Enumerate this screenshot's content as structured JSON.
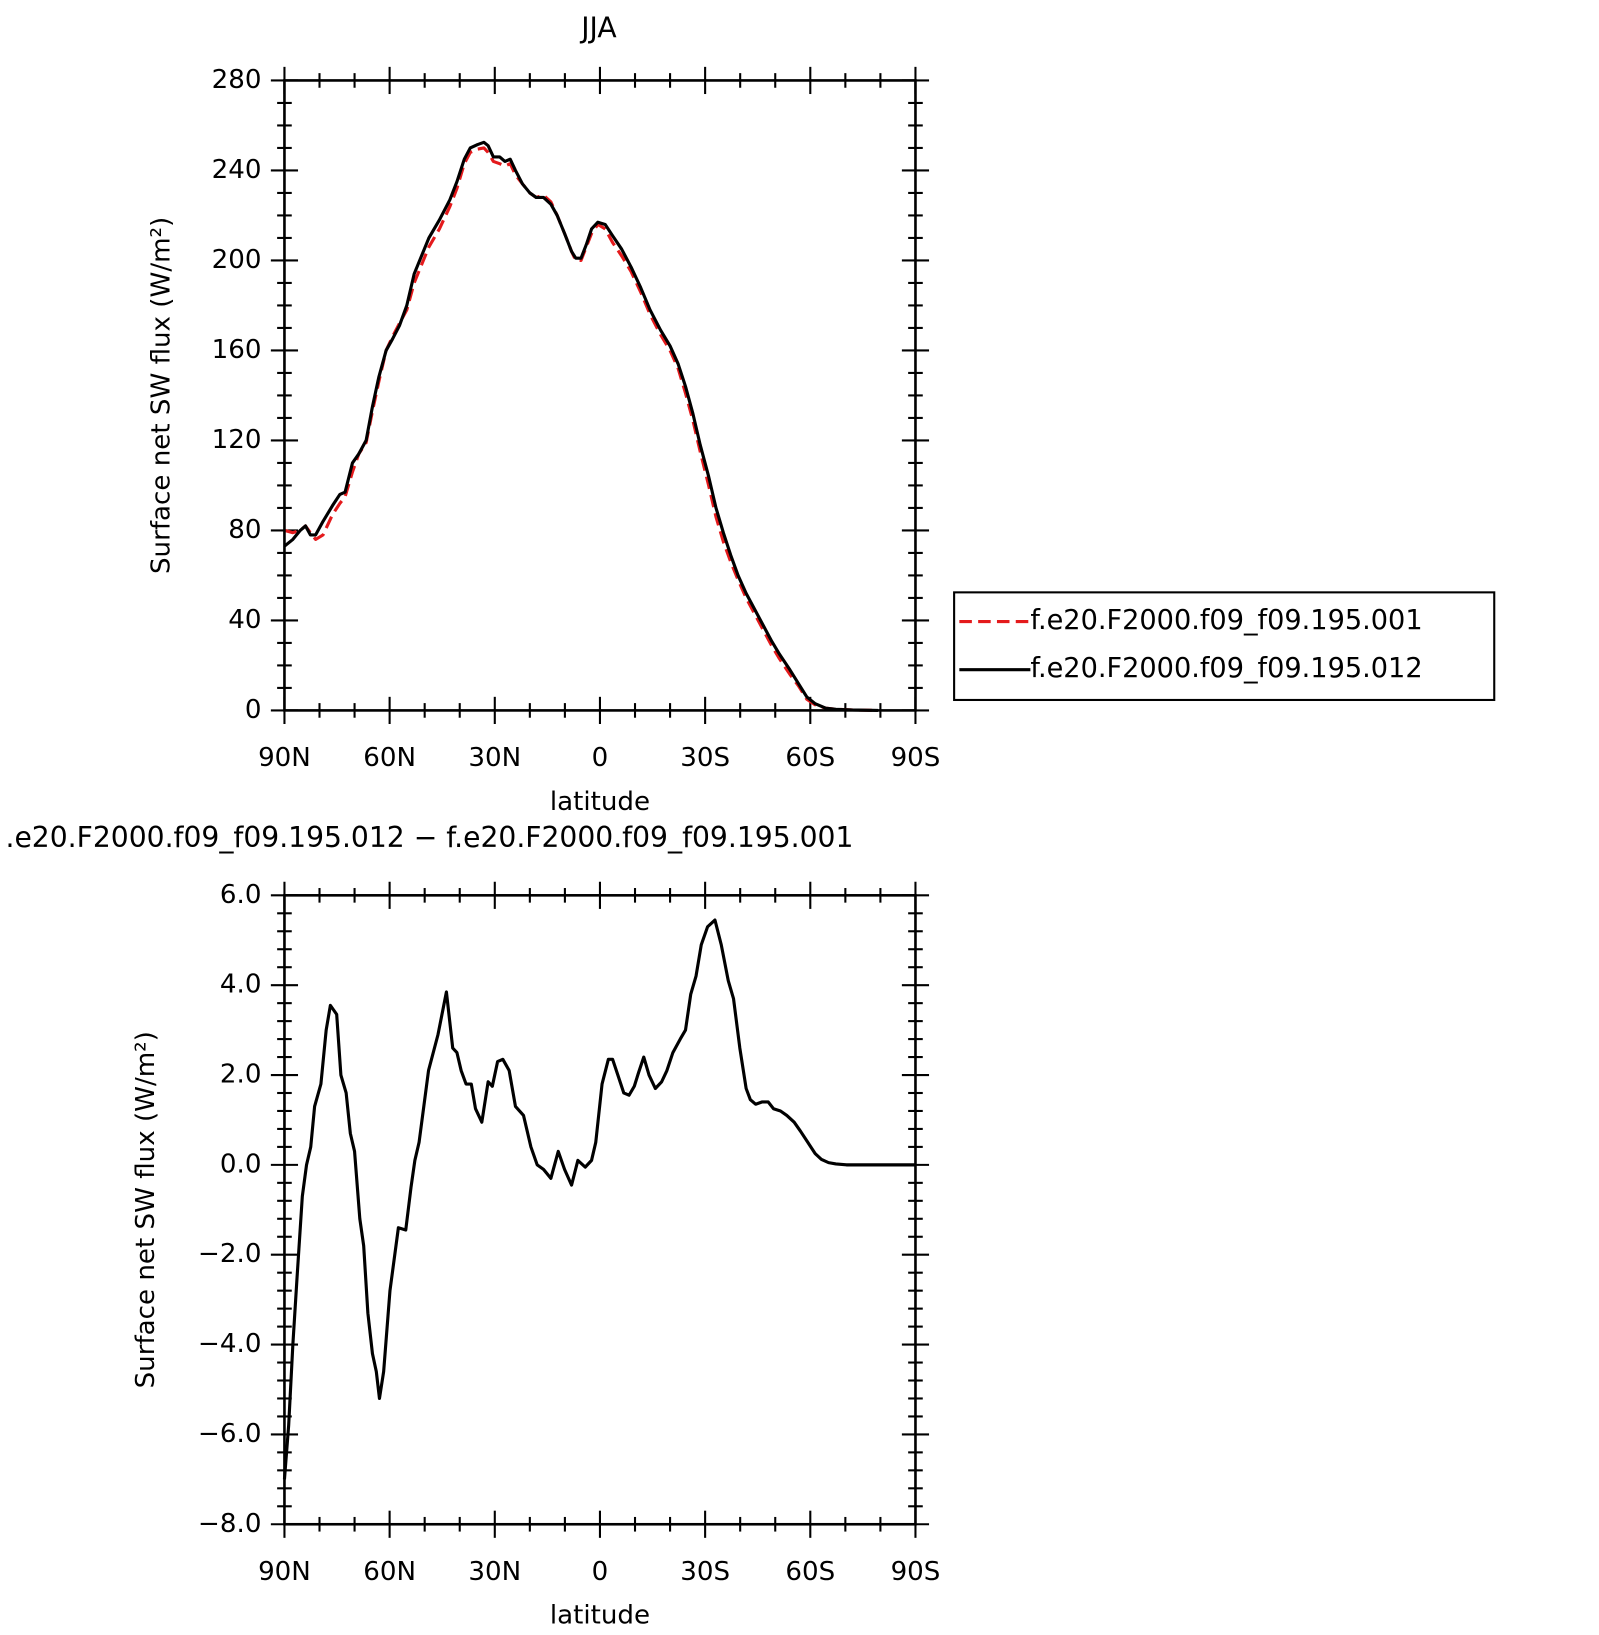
{
  "chart_data": [
    {
      "type": "line",
      "title": "JJA",
      "xlabel": "latitude",
      "ylabel": "Surface net SW flux (W/m²)",
      "xlim": [
        90,
        -90
      ],
      "xticks": [
        {
          "value": 90,
          "label": "90N"
        },
        {
          "value": 60,
          "label": "60N"
        },
        {
          "value": 30,
          "label": "30N"
        },
        0,
        {
          "value": -30,
          "label": "30S"
        },
        {
          "value": -60,
          "label": "60S"
        },
        {
          "value": -90,
          "label": "90S"
        }
      ],
      "ylim": [
        0,
        280
      ],
      "yticks": [
        0,
        40,
        80,
        120,
        160,
        200,
        240,
        280
      ],
      "legend": "right",
      "x": [
        90.0,
        87.6,
        85.5,
        84.0,
        82.6,
        81.1,
        79.0,
        76.3,
        74.2,
        72.7,
        70.6,
        68.8,
        66.7,
        64.9,
        63.1,
        61.0,
        59.2,
        57.2,
        55.1,
        53.0,
        50.9,
        48.8,
        45.8,
        42.8,
        40.8,
        38.7,
        37.0,
        34.9,
        33.1,
        31.9,
        30.4,
        28.6,
        27.1,
        25.6,
        24.1,
        22.1,
        20.0,
        18.2,
        16.1,
        14.0,
        12.2,
        10.1,
        8.1,
        6.9,
        5.4,
        3.9,
        2.4,
        0.6,
        -1.5,
        -3.6,
        -6.2,
        -8.9,
        -11.6,
        -14.3,
        -17.3,
        -20.0,
        -22.3,
        -24.4,
        -26.5,
        -28.6,
        -31.0,
        -33.1,
        -35.2,
        -37.3,
        -39.4,
        -41.7,
        -44.1,
        -46.5,
        -48.9,
        -51.2,
        -54.2,
        -56.6,
        -59.0,
        -61.4,
        -64.4,
        -67.3,
        -71.8,
        -79.3
      ],
      "series": [
        {
          "name": "f.e20.F2000.f09_f09.195.001",
          "color": "#e41a1c",
          "dash": "dashed",
          "values": [
            80,
            79,
            80,
            82,
            79,
            76,
            78,
            87,
            92,
            95,
            106,
            114,
            119,
            133,
            146,
            160,
            166,
            172,
            178,
            190,
            198,
            206,
            214,
            224,
            232,
            243,
            248,
            249.5,
            250,
            248,
            244,
            243,
            242,
            243,
            238,
            234,
            230,
            228,
            229,
            226,
            220,
            212,
            204,
            200,
            200,
            206,
            212,
            216,
            214,
            208,
            202,
            195,
            186,
            176,
            167,
            160,
            152,
            141,
            129,
            115,
            100,
            86,
            75,
            66,
            58,
            50,
            43,
            36,
            29,
            23,
            16,
            11,
            5,
            2.5,
            1,
            0.5,
            0.2,
            0
          ]
        },
        {
          "name": "f.e20.F2000.f09_f09.195.012",
          "color": "#000000",
          "dash": "solid",
          "values": [
            73,
            76,
            80,
            82,
            78,
            78,
            84,
            91,
            96,
            97,
            110,
            114,
            120,
            135,
            148,
            160,
            165,
            171,
            180,
            194,
            202,
            210,
            218,
            227,
            235,
            245,
            250,
            251.5,
            252.5,
            251,
            246,
            246,
            244,
            245,
            240,
            234,
            230,
            228,
            228,
            225,
            220,
            212,
            204,
            201,
            201,
            207,
            214,
            217,
            216,
            211,
            205,
            197,
            188,
            178,
            169,
            162,
            154,
            144,
            132,
            118,
            104,
            90,
            79,
            69,
            60,
            52,
            45,
            38,
            31,
            25,
            18,
            12,
            6,
            3,
            1,
            0.5,
            0.2,
            0
          ]
        }
      ]
    },
    {
      "type": "line",
      "title": ".e20.F2000.f09_f09.195.012 − f.e20.F2000.f09_f09.195.001",
      "xlabel": "latitude",
      "ylabel": "Surface net SW flux (W/m²)",
      "xlim": [
        90,
        -90
      ],
      "xticks": [
        {
          "value": 90,
          "label": "90N"
        },
        {
          "value": 60,
          "label": "60N"
        },
        {
          "value": 30,
          "label": "30N"
        },
        0,
        {
          "value": -30,
          "label": "30S"
        },
        {
          "value": -60,
          "label": "60S"
        },
        {
          "value": -90,
          "label": "90S"
        }
      ],
      "ylim": [
        -8,
        6
      ],
      "yticks": [
        {
          "value": -8,
          "label": "−8.0"
        },
        {
          "value": -6,
          "label": "−6.0"
        },
        {
          "value": -4,
          "label": "−4.0"
        },
        {
          "value": -2,
          "label": "−2.0"
        },
        {
          "value": 0,
          "label": "0.0"
        },
        {
          "value": 2,
          "label": "2.0"
        },
        {
          "value": 4,
          "label": "4.0"
        },
        {
          "value": 6,
          "label": "6.0"
        }
      ],
      "x": [
        90.0,
        88.8,
        87.6,
        86.4,
        84.9,
        83.7,
        82.5,
        81.4,
        79.6,
        78.1,
        76.9,
        75.1,
        73.9,
        72.4,
        71.2,
        70.0,
        68.5,
        67.4,
        66.2,
        64.9,
        63.8,
        62.9,
        61.7,
        59.9,
        57.5,
        55.4,
        53.9,
        52.8,
        51.6,
        48.9,
        46.2,
        43.8,
        42.0,
        40.8,
        39.6,
        38.2,
        36.7,
        35.5,
        33.7,
        31.9,
        30.7,
        29.2,
        27.7,
        25.9,
        24.1,
        21.8,
        19.7,
        17.9,
        16.1,
        14.0,
        11.9,
        10.1,
        8.1,
        6.3,
        4.2,
        2.4,
        1.2,
        -0.6,
        -2.4,
        -3.6,
        -5.1,
        -6.8,
        -8.3,
        -9.8,
        -11.0,
        -12.5,
        -14.0,
        -15.8,
        -17.6,
        -19.1,
        -20.8,
        -22.9,
        -24.4,
        -25.9,
        -27.4,
        -28.9,
        -30.7,
        -32.8,
        -34.6,
        -36.6,
        -38.1,
        -39.9,
        -41.7,
        -42.9,
        -44.4,
        -46.2,
        -48.0,
        -49.5,
        -51.5,
        -53.3,
        -55.4,
        -57.2,
        -59.3,
        -61.4,
        -63.2,
        -65.2,
        -67.3,
        -70.3,
        -90.0
      ],
      "series": [
        {
          "color": "#000000",
          "dash": "solid",
          "values": [
            -7.0,
            -5.8,
            -4.0,
            -2.5,
            -0.7,
            0.0,
            0.4,
            1.3,
            1.8,
            3.0,
            3.55,
            3.35,
            2.0,
            1.6,
            0.7,
            0.3,
            -1.2,
            -1.8,
            -3.3,
            -4.2,
            -4.6,
            -5.2,
            -4.6,
            -2.8,
            -1.4,
            -1.45,
            -0.5,
            0.1,
            0.5,
            2.1,
            2.9,
            3.85,
            2.6,
            2.5,
            2.1,
            1.8,
            1.8,
            1.25,
            0.95,
            1.85,
            1.75,
            2.3,
            2.35,
            2.1,
            1.3,
            1.1,
            0.4,
            0.0,
            -0.1,
            -0.3,
            0.3,
            -0.1,
            -0.45,
            0.1,
            -0.05,
            0.1,
            0.5,
            1.8,
            2.35,
            2.35,
            2.0,
            1.6,
            1.55,
            1.75,
            2.05,
            2.4,
            2.0,
            1.7,
            1.85,
            2.1,
            2.5,
            2.8,
            3.0,
            3.8,
            4.2,
            4.9,
            5.3,
            5.45,
            4.9,
            4.1,
            3.7,
            2.6,
            1.7,
            1.45,
            1.35,
            1.4,
            1.4,
            1.25,
            1.2,
            1.1,
            0.95,
            0.75,
            0.5,
            0.25,
            0.12,
            0.05,
            0.02,
            0,
            0
          ]
        }
      ]
    }
  ]
}
